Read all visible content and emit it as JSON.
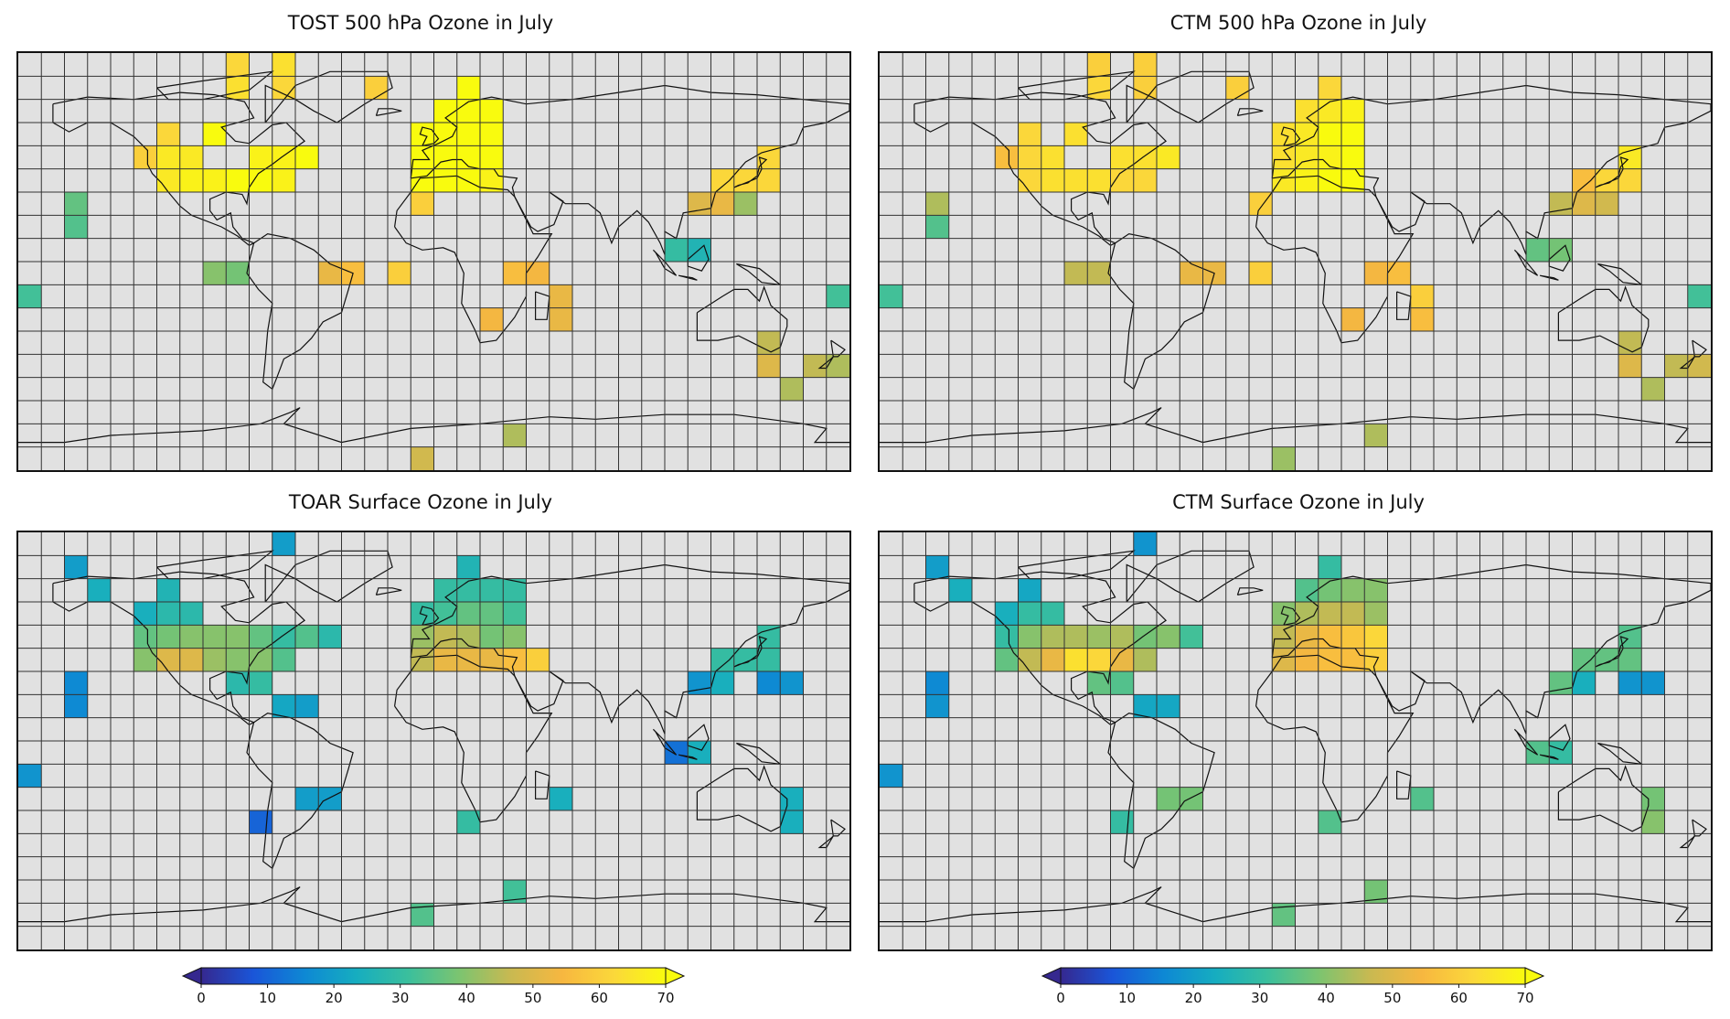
{
  "figure": {
    "colors": {
      "land_background": "#e1e1e1",
      "grid_line": "#333333",
      "coastline": "#111111"
    },
    "colormap": [
      "#35288f",
      "#1a55d8",
      "#0e88d4",
      "#16adc0",
      "#3abf9d",
      "#7cc470",
      "#c9b951",
      "#f7b740",
      "#fbd83a",
      "#f9fb0e"
    ]
  },
  "chart_data": [
    {
      "type": "heatmap",
      "title": "TOST 500 hPa Ozone in July",
      "xlabel": "",
      "ylabel": "",
      "grid": true,
      "grid_cols": 36,
      "grid_rows": 18,
      "cells": [
        [
          9,
          0,
          62
        ],
        [
          11,
          0,
          64
        ],
        [
          9,
          1,
          64
        ],
        [
          11,
          1,
          62
        ],
        [
          15,
          1,
          60
        ],
        [
          19,
          1,
          70
        ],
        [
          18,
          2,
          70
        ],
        [
          19,
          2,
          70
        ],
        [
          20,
          2,
          70
        ],
        [
          6,
          3,
          62
        ],
        [
          8,
          3,
          70
        ],
        [
          17,
          3,
          70
        ],
        [
          18,
          3,
          70
        ],
        [
          19,
          3,
          70
        ],
        [
          20,
          3,
          70
        ],
        [
          5,
          4,
          60
        ],
        [
          6,
          4,
          66
        ],
        [
          7,
          4,
          66
        ],
        [
          10,
          4,
          68
        ],
        [
          11,
          4,
          68
        ],
        [
          12,
          4,
          70
        ],
        [
          17,
          4,
          70
        ],
        [
          18,
          4,
          70
        ],
        [
          19,
          4,
          70
        ],
        [
          20,
          4,
          70
        ],
        [
          32,
          4,
          62
        ],
        [
          6,
          5,
          66
        ],
        [
          7,
          5,
          68
        ],
        [
          8,
          5,
          68
        ],
        [
          9,
          5,
          70
        ],
        [
          10,
          5,
          70
        ],
        [
          11,
          5,
          68
        ],
        [
          17,
          5,
          70
        ],
        [
          18,
          5,
          70
        ],
        [
          19,
          5,
          70
        ],
        [
          20,
          5,
          68
        ],
        [
          30,
          5,
          62
        ],
        [
          31,
          5,
          62
        ],
        [
          32,
          5,
          62
        ],
        [
          17,
          6,
          60
        ],
        [
          29,
          6,
          50
        ],
        [
          30,
          6,
          52
        ],
        [
          31,
          6,
          42
        ],
        [
          2,
          6,
          36
        ],
        [
          2,
          7,
          34
        ],
        [
          28,
          8,
          30
        ],
        [
          29,
          8,
          26
        ],
        [
          8,
          9,
          40
        ],
        [
          9,
          9,
          38
        ],
        [
          13,
          9,
          52
        ],
        [
          14,
          9,
          56
        ],
        [
          16,
          9,
          60
        ],
        [
          21,
          9,
          56
        ],
        [
          22,
          9,
          54
        ],
        [
          0,
          10,
          32
        ],
        [
          23,
          10,
          52
        ],
        [
          35,
          10,
          32
        ],
        [
          20,
          11,
          54
        ],
        [
          23,
          11,
          52
        ],
        [
          32,
          12,
          46
        ],
        [
          32,
          13,
          50
        ],
        [
          34,
          13,
          46
        ],
        [
          35,
          13,
          44
        ],
        [
          33,
          14,
          44
        ],
        [
          21,
          16,
          44
        ],
        [
          17,
          17,
          48
        ]
      ]
    },
    {
      "type": "heatmap",
      "title": "CTM 500 hPa Ozone in July",
      "xlabel": "",
      "ylabel": "",
      "grid": true,
      "grid_cols": 36,
      "grid_rows": 18,
      "cells": [
        [
          9,
          0,
          60
        ],
        [
          11,
          0,
          60
        ],
        [
          9,
          1,
          62
        ],
        [
          11,
          1,
          60
        ],
        [
          15,
          1,
          60
        ],
        [
          19,
          1,
          62
        ],
        [
          18,
          2,
          64
        ],
        [
          19,
          2,
          66
        ],
        [
          20,
          2,
          68
        ],
        [
          6,
          3,
          62
        ],
        [
          8,
          3,
          64
        ],
        [
          17,
          3,
          64
        ],
        [
          18,
          3,
          66
        ],
        [
          19,
          3,
          70
        ],
        [
          20,
          3,
          70
        ],
        [
          5,
          4,
          56
        ],
        [
          6,
          4,
          62
        ],
        [
          7,
          4,
          64
        ],
        [
          10,
          4,
          64
        ],
        [
          11,
          4,
          64
        ],
        [
          12,
          4,
          66
        ],
        [
          17,
          4,
          64
        ],
        [
          18,
          4,
          66
        ],
        [
          19,
          4,
          68
        ],
        [
          20,
          4,
          70
        ],
        [
          32,
          4,
          66
        ],
        [
          6,
          5,
          62
        ],
        [
          7,
          5,
          64
        ],
        [
          8,
          5,
          64
        ],
        [
          9,
          5,
          64
        ],
        [
          10,
          5,
          62
        ],
        [
          11,
          5,
          62
        ],
        [
          17,
          5,
          66
        ],
        [
          18,
          5,
          68
        ],
        [
          19,
          5,
          70
        ],
        [
          20,
          5,
          70
        ],
        [
          30,
          5,
          56
        ],
        [
          31,
          5,
          62
        ],
        [
          32,
          5,
          62
        ],
        [
          16,
          6,
          60
        ],
        [
          29,
          6,
          46
        ],
        [
          30,
          6,
          50
        ],
        [
          31,
          6,
          48
        ],
        [
          2,
          6,
          44
        ],
        [
          2,
          7,
          34
        ],
        [
          28,
          8,
          36
        ],
        [
          29,
          8,
          38
        ],
        [
          8,
          9,
          46
        ],
        [
          9,
          9,
          46
        ],
        [
          13,
          9,
          52
        ],
        [
          14,
          9,
          52
        ],
        [
          16,
          9,
          60
        ],
        [
          21,
          9,
          54
        ],
        [
          22,
          9,
          56
        ],
        [
          0,
          10,
          32
        ],
        [
          23,
          10,
          60
        ],
        [
          35,
          10,
          32
        ],
        [
          20,
          11,
          54
        ],
        [
          23,
          11,
          56
        ],
        [
          32,
          12,
          46
        ],
        [
          32,
          13,
          50
        ],
        [
          34,
          13,
          46
        ],
        [
          35,
          13,
          48
        ],
        [
          33,
          14,
          44
        ],
        [
          21,
          16,
          44
        ],
        [
          17,
          17,
          42
        ]
      ]
    },
    {
      "type": "heatmap",
      "title": "TOAR Surface Ozone in July",
      "xlabel": "",
      "ylabel": "",
      "grid": true,
      "grid_cols": 36,
      "grid_rows": 18,
      "cells": [
        [
          11,
          0,
          20
        ],
        [
          2,
          1,
          20
        ],
        [
          3,
          2,
          24
        ],
        [
          6,
          2,
          26
        ],
        [
          19,
          1,
          26
        ],
        [
          18,
          2,
          30
        ],
        [
          19,
          2,
          30
        ],
        [
          20,
          2,
          30
        ],
        [
          21,
          2,
          30
        ],
        [
          5,
          3,
          24
        ],
        [
          6,
          3,
          28
        ],
        [
          7,
          3,
          28
        ],
        [
          17,
          3,
          30
        ],
        [
          18,
          3,
          32
        ],
        [
          19,
          3,
          36
        ],
        [
          20,
          3,
          36
        ],
        [
          21,
          3,
          32
        ],
        [
          5,
          4,
          36
        ],
        [
          6,
          4,
          38
        ],
        [
          7,
          4,
          40
        ],
        [
          8,
          4,
          40
        ],
        [
          9,
          4,
          40
        ],
        [
          10,
          4,
          36
        ],
        [
          11,
          4,
          30
        ],
        [
          12,
          4,
          34
        ],
        [
          13,
          4,
          28
        ],
        [
          17,
          4,
          42
        ],
        [
          18,
          4,
          46
        ],
        [
          19,
          4,
          44
        ],
        [
          20,
          4,
          38
        ],
        [
          21,
          4,
          40
        ],
        [
          32,
          4,
          30
        ],
        [
          5,
          5,
          40
        ],
        [
          6,
          5,
          50
        ],
        [
          7,
          5,
          50
        ],
        [
          8,
          5,
          42
        ],
        [
          9,
          5,
          40
        ],
        [
          10,
          5,
          40
        ],
        [
          11,
          5,
          34
        ],
        [
          17,
          5,
          46
        ],
        [
          18,
          5,
          52
        ],
        [
          19,
          5,
          52
        ],
        [
          20,
          5,
          52
        ],
        [
          21,
          5,
          56
        ],
        [
          22,
          5,
          60
        ],
        [
          30,
          5,
          30
        ],
        [
          31,
          5,
          30
        ],
        [
          32,
          5,
          30
        ],
        [
          2,
          6,
          16
        ],
        [
          9,
          6,
          28
        ],
        [
          10,
          6,
          30
        ],
        [
          29,
          6,
          18
        ],
        [
          30,
          6,
          24
        ],
        [
          32,
          6,
          16
        ],
        [
          33,
          6,
          18
        ],
        [
          2,
          7,
          16
        ],
        [
          11,
          7,
          22
        ],
        [
          12,
          7,
          20
        ],
        [
          28,
          9,
          12
        ],
        [
          29,
          9,
          24
        ],
        [
          0,
          10,
          18
        ],
        [
          12,
          11,
          20
        ],
        [
          13,
          11,
          20
        ],
        [
          23,
          11,
          24
        ],
        [
          33,
          11,
          24
        ],
        [
          10,
          12,
          10
        ],
        [
          19,
          12,
          30
        ],
        [
          33,
          12,
          24
        ],
        [
          21,
          15,
          32
        ],
        [
          17,
          16,
          34
        ]
      ]
    },
    {
      "type": "heatmap",
      "title": "CTM Surface Ozone in July",
      "xlabel": "",
      "ylabel": "",
      "grid": true,
      "grid_cols": 36,
      "grid_rows": 18,
      "cells": [
        [
          11,
          0,
          18
        ],
        [
          2,
          1,
          20
        ],
        [
          3,
          2,
          24
        ],
        [
          6,
          2,
          22
        ],
        [
          19,
          1,
          30
        ],
        [
          18,
          2,
          34
        ],
        [
          19,
          2,
          38
        ],
        [
          20,
          2,
          40
        ],
        [
          21,
          2,
          40
        ],
        [
          5,
          3,
          24
        ],
        [
          6,
          3,
          30
        ],
        [
          7,
          3,
          30
        ],
        [
          17,
          3,
          40
        ],
        [
          18,
          3,
          44
        ],
        [
          19,
          3,
          46
        ],
        [
          20,
          3,
          46
        ],
        [
          21,
          3,
          42
        ],
        [
          5,
          4,
          30
        ],
        [
          6,
          4,
          40
        ],
        [
          7,
          4,
          44
        ],
        [
          8,
          4,
          44
        ],
        [
          9,
          4,
          42
        ],
        [
          10,
          4,
          44
        ],
        [
          11,
          4,
          38
        ],
        [
          12,
          4,
          40
        ],
        [
          13,
          4,
          32
        ],
        [
          17,
          4,
          46
        ],
        [
          18,
          4,
          52
        ],
        [
          19,
          4,
          56
        ],
        [
          20,
          4,
          58
        ],
        [
          21,
          4,
          62
        ],
        [
          32,
          4,
          34
        ],
        [
          5,
          5,
          36
        ],
        [
          6,
          5,
          46
        ],
        [
          7,
          5,
          52
        ],
        [
          8,
          5,
          64
        ],
        [
          9,
          5,
          62
        ],
        [
          10,
          5,
          52
        ],
        [
          11,
          5,
          44
        ],
        [
          17,
          5,
          50
        ],
        [
          18,
          5,
          54
        ],
        [
          19,
          5,
          56
        ],
        [
          20,
          5,
          56
        ],
        [
          21,
          5,
          60
        ],
        [
          30,
          5,
          36
        ],
        [
          31,
          5,
          36
        ],
        [
          32,
          5,
          36
        ],
        [
          2,
          6,
          16
        ],
        [
          9,
          6,
          36
        ],
        [
          10,
          6,
          34
        ],
        [
          29,
          6,
          36
        ],
        [
          30,
          6,
          24
        ],
        [
          32,
          6,
          18
        ],
        [
          33,
          6,
          18
        ],
        [
          2,
          7,
          18
        ],
        [
          11,
          7,
          22
        ],
        [
          12,
          7,
          22
        ],
        [
          28,
          9,
          34
        ],
        [
          29,
          9,
          30
        ],
        [
          0,
          10,
          18
        ],
        [
          12,
          11,
          38
        ],
        [
          13,
          11,
          38
        ],
        [
          23,
          11,
          34
        ],
        [
          33,
          11,
          38
        ],
        [
          10,
          12,
          30
        ],
        [
          19,
          12,
          34
        ],
        [
          33,
          12,
          40
        ],
        [
          21,
          15,
          38
        ],
        [
          17,
          16,
          36
        ]
      ]
    }
  ],
  "colorbars": [
    {
      "vmin": 0,
      "vmax": 70,
      "ticks": [
        "0",
        "10",
        "20",
        "30",
        "40",
        "50",
        "60",
        "70"
      ],
      "extend": "both"
    },
    {
      "vmin": 0,
      "vmax": 70,
      "ticks": [
        "0",
        "10",
        "20",
        "30",
        "40",
        "50",
        "60",
        "70"
      ],
      "extend": "both"
    }
  ]
}
